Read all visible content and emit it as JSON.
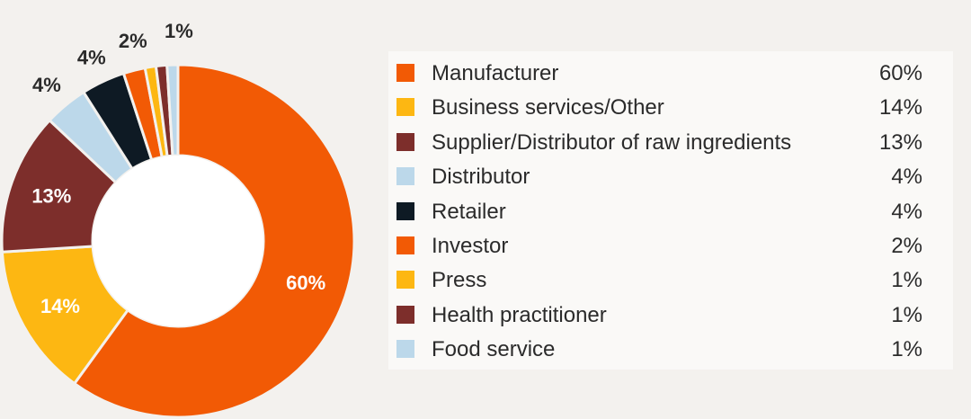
{
  "chart_data": {
    "type": "pie",
    "donut": true,
    "categories": [
      "Manufacturer",
      "Business services/Other",
      "Supplier/Distributor of raw ingredients",
      "Distributor",
      "Retailer",
      "Investor",
      "Press",
      "Health practitioner",
      "Food service"
    ],
    "values": [
      60,
      14,
      13,
      4,
      4,
      2,
      1,
      1,
      1
    ],
    "value_labels": [
      "60%",
      "14%",
      "13%",
      "4%",
      "4%",
      "2%",
      "1%",
      "1%",
      "1%"
    ],
    "colors": [
      "#f25a05",
      "#fdb712",
      "#7d2e2b",
      "#bcd8ea",
      "#0e1a24",
      "#f25a05",
      "#fdb712",
      "#7d2e2b",
      "#bcd8ea"
    ],
    "label_colors": [
      "#ffffff",
      "#ffffff",
      "#ffffff",
      "#2b2b2b",
      "#2b2b2b",
      "#2b2b2b",
      "",
      "",
      "#2b2b2b"
    ],
    "legend_position": "right",
    "title": "",
    "xlabel": "",
    "ylabel": ""
  }
}
